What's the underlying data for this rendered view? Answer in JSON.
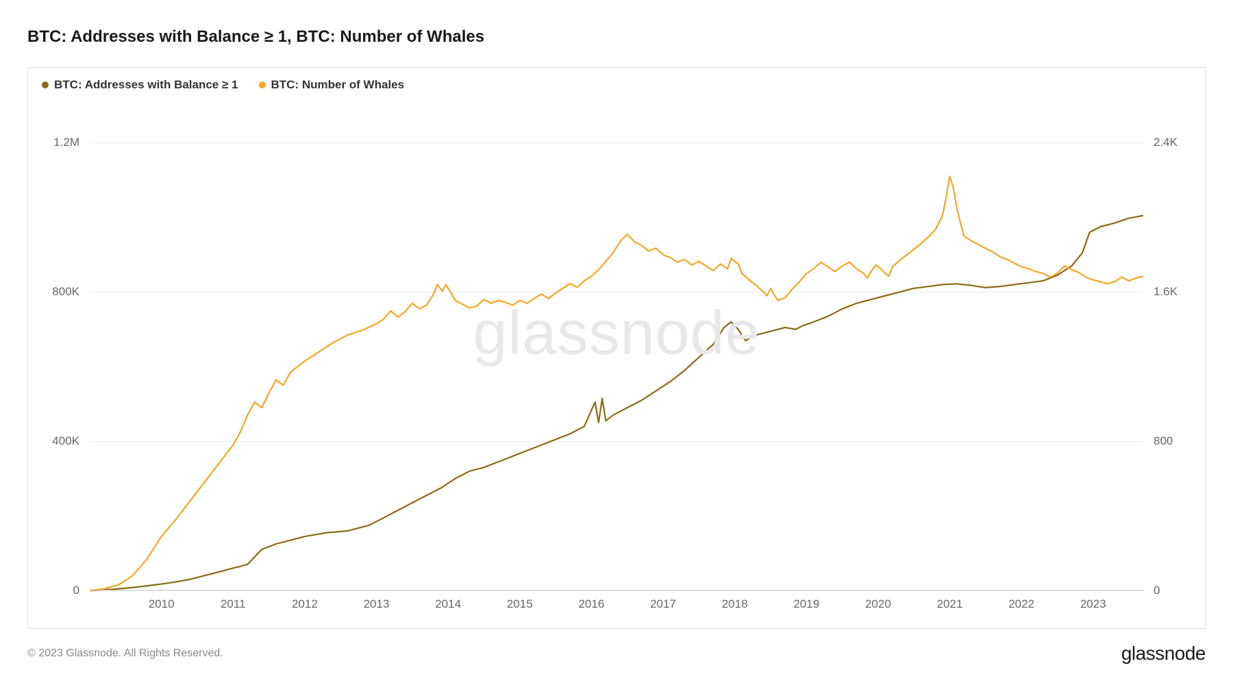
{
  "title": "BTC: Addresses with Balance ≥ 1, BTC: Number of Whales",
  "watermark": "glassnode",
  "copyright": "© 2023 Glassnode. All Rights Reserved.",
  "brand": "glassnode",
  "chart": {
    "type": "line",
    "background_color": "#ffffff",
    "border_color": "#e0e0e0",
    "grid_color": "#eeeeee",
    "text_color": "#666666",
    "title_fontsize": 24,
    "label_fontsize": 17,
    "x": {
      "min": 2009.0,
      "max": 2023.7,
      "ticks": [
        2010,
        2011,
        2012,
        2013,
        2014,
        2015,
        2016,
        2017,
        2018,
        2019,
        2020,
        2021,
        2022,
        2023
      ]
    },
    "y_left": {
      "min": 0,
      "max": 1300000,
      "ticks": [
        {
          "v": 0,
          "label": "0"
        },
        {
          "v": 400000,
          "label": "400K"
        },
        {
          "v": 800000,
          "label": "800K"
        },
        {
          "v": 1200000,
          "label": "1.2M"
        }
      ]
    },
    "y_right": {
      "min": 0,
      "max": 2600,
      "ticks": [
        {
          "v": 0,
          "label": "0"
        },
        {
          "v": 800,
          "label": "800"
        },
        {
          "v": 1600,
          "label": "1.6K"
        },
        {
          "v": 2400,
          "label": "2.4K"
        }
      ]
    },
    "series": [
      {
        "name": "BTC: Addresses with Balance ≥ 1",
        "axis": "left",
        "color": "#8b6914",
        "line_width": 2.2,
        "points": [
          [
            2009.0,
            0
          ],
          [
            2009.3,
            3000
          ],
          [
            2009.6,
            8000
          ],
          [
            2009.9,
            15000
          ],
          [
            2010.1,
            20000
          ],
          [
            2010.4,
            30000
          ],
          [
            2010.7,
            45000
          ],
          [
            2011.0,
            60000
          ],
          [
            2011.2,
            70000
          ],
          [
            2011.4,
            110000
          ],
          [
            2011.6,
            125000
          ],
          [
            2011.8,
            135000
          ],
          [
            2012.0,
            145000
          ],
          [
            2012.3,
            155000
          ],
          [
            2012.6,
            160000
          ],
          [
            2012.9,
            175000
          ],
          [
            2013.1,
            195000
          ],
          [
            2013.3,
            215000
          ],
          [
            2013.5,
            235000
          ],
          [
            2013.7,
            255000
          ],
          [
            2013.9,
            275000
          ],
          [
            2014.1,
            300000
          ],
          [
            2014.3,
            320000
          ],
          [
            2014.5,
            330000
          ],
          [
            2014.7,
            345000
          ],
          [
            2014.9,
            360000
          ],
          [
            2015.1,
            375000
          ],
          [
            2015.3,
            390000
          ],
          [
            2015.5,
            405000
          ],
          [
            2015.7,
            420000
          ],
          [
            2015.9,
            440000
          ],
          [
            2016.05,
            505000
          ],
          [
            2016.1,
            450000
          ],
          [
            2016.15,
            515000
          ],
          [
            2016.2,
            455000
          ],
          [
            2016.3,
            470000
          ],
          [
            2016.5,
            490000
          ],
          [
            2016.7,
            510000
          ],
          [
            2016.9,
            535000
          ],
          [
            2017.1,
            560000
          ],
          [
            2017.3,
            590000
          ],
          [
            2017.5,
            625000
          ],
          [
            2017.7,
            660000
          ],
          [
            2017.85,
            705000
          ],
          [
            2017.95,
            720000
          ],
          [
            2018.05,
            700000
          ],
          [
            2018.15,
            670000
          ],
          [
            2018.3,
            685000
          ],
          [
            2018.5,
            695000
          ],
          [
            2018.7,
            705000
          ],
          [
            2018.85,
            700000
          ],
          [
            2018.95,
            710000
          ],
          [
            2019.1,
            720000
          ],
          [
            2019.3,
            735000
          ],
          [
            2019.5,
            755000
          ],
          [
            2019.7,
            770000
          ],
          [
            2019.9,
            780000
          ],
          [
            2020.1,
            790000
          ],
          [
            2020.3,
            800000
          ],
          [
            2020.5,
            810000
          ],
          [
            2020.7,
            815000
          ],
          [
            2020.9,
            820000
          ],
          [
            2021.1,
            822000
          ],
          [
            2021.3,
            818000
          ],
          [
            2021.5,
            812000
          ],
          [
            2021.7,
            815000
          ],
          [
            2021.9,
            820000
          ],
          [
            2022.1,
            825000
          ],
          [
            2022.3,
            830000
          ],
          [
            2022.5,
            845000
          ],
          [
            2022.7,
            870000
          ],
          [
            2022.85,
            905000
          ],
          [
            2022.95,
            960000
          ],
          [
            2023.1,
            975000
          ],
          [
            2023.3,
            985000
          ],
          [
            2023.5,
            998000
          ],
          [
            2023.7,
            1005000
          ]
        ]
      },
      {
        "name": "BTC: Number of Whales",
        "axis": "right",
        "color": "#f5a623",
        "line_width": 2.2,
        "points": [
          [
            2009.0,
            0
          ],
          [
            2009.2,
            10
          ],
          [
            2009.4,
            30
          ],
          [
            2009.6,
            80
          ],
          [
            2009.8,
            170
          ],
          [
            2010.0,
            290
          ],
          [
            2010.2,
            380
          ],
          [
            2010.4,
            480
          ],
          [
            2010.6,
            580
          ],
          [
            2010.8,
            680
          ],
          [
            2011.0,
            780
          ],
          [
            2011.1,
            850
          ],
          [
            2011.2,
            940
          ],
          [
            2011.3,
            1010
          ],
          [
            2011.4,
            980
          ],
          [
            2011.5,
            1060
          ],
          [
            2011.6,
            1130
          ],
          [
            2011.7,
            1100
          ],
          [
            2011.8,
            1170
          ],
          [
            2012.0,
            1230
          ],
          [
            2012.2,
            1280
          ],
          [
            2012.4,
            1330
          ],
          [
            2012.6,
            1370
          ],
          [
            2012.8,
            1395
          ],
          [
            2013.0,
            1430
          ],
          [
            2013.1,
            1455
          ],
          [
            2013.2,
            1500
          ],
          [
            2013.3,
            1465
          ],
          [
            2013.4,
            1495
          ],
          [
            2013.5,
            1540
          ],
          [
            2013.6,
            1510
          ],
          [
            2013.7,
            1530
          ],
          [
            2013.8,
            1590
          ],
          [
            2013.85,
            1640
          ],
          [
            2013.92,
            1605
          ],
          [
            2013.97,
            1640
          ],
          [
            2014.05,
            1590
          ],
          [
            2014.1,
            1555
          ],
          [
            2014.2,
            1535
          ],
          [
            2014.3,
            1515
          ],
          [
            2014.4,
            1525
          ],
          [
            2014.5,
            1560
          ],
          [
            2014.6,
            1540
          ],
          [
            2014.7,
            1555
          ],
          [
            2014.8,
            1545
          ],
          [
            2014.9,
            1530
          ],
          [
            2015.0,
            1555
          ],
          [
            2015.1,
            1540
          ],
          [
            2015.2,
            1565
          ],
          [
            2015.3,
            1590
          ],
          [
            2015.4,
            1565
          ],
          [
            2015.5,
            1595
          ],
          [
            2015.6,
            1620
          ],
          [
            2015.7,
            1645
          ],
          [
            2015.8,
            1625
          ],
          [
            2015.9,
            1660
          ],
          [
            2016.0,
            1685
          ],
          [
            2016.1,
            1720
          ],
          [
            2016.2,
            1765
          ],
          [
            2016.3,
            1810
          ],
          [
            2016.4,
            1870
          ],
          [
            2016.5,
            1910
          ],
          [
            2016.55,
            1890
          ],
          [
            2016.6,
            1870
          ],
          [
            2016.7,
            1850
          ],
          [
            2016.8,
            1820
          ],
          [
            2016.9,
            1835
          ],
          [
            2017.0,
            1800
          ],
          [
            2017.1,
            1785
          ],
          [
            2017.2,
            1760
          ],
          [
            2017.3,
            1775
          ],
          [
            2017.4,
            1745
          ],
          [
            2017.5,
            1765
          ],
          [
            2017.6,
            1740
          ],
          [
            2017.7,
            1715
          ],
          [
            2017.8,
            1750
          ],
          [
            2017.9,
            1725
          ],
          [
            2017.95,
            1780
          ],
          [
            2018.05,
            1750
          ],
          [
            2018.1,
            1700
          ],
          [
            2018.2,
            1665
          ],
          [
            2018.3,
            1635
          ],
          [
            2018.4,
            1600
          ],
          [
            2018.45,
            1580
          ],
          [
            2018.5,
            1620
          ],
          [
            2018.55,
            1585
          ],
          [
            2018.6,
            1555
          ],
          [
            2018.7,
            1570
          ],
          [
            2018.8,
            1615
          ],
          [
            2018.9,
            1655
          ],
          [
            2019.0,
            1700
          ],
          [
            2019.1,
            1725
          ],
          [
            2019.2,
            1760
          ],
          [
            2019.3,
            1735
          ],
          [
            2019.4,
            1710
          ],
          [
            2019.5,
            1740
          ],
          [
            2019.6,
            1760
          ],
          [
            2019.7,
            1725
          ],
          [
            2019.8,
            1700
          ],
          [
            2019.85,
            1675
          ],
          [
            2019.9,
            1710
          ],
          [
            2019.97,
            1745
          ],
          [
            2020.05,
            1720
          ],
          [
            2020.1,
            1700
          ],
          [
            2020.15,
            1685
          ],
          [
            2020.2,
            1735
          ],
          [
            2020.3,
            1770
          ],
          [
            2020.4,
            1800
          ],
          [
            2020.5,
            1830
          ],
          [
            2020.6,
            1860
          ],
          [
            2020.7,
            1895
          ],
          [
            2020.8,
            1935
          ],
          [
            2020.9,
            2010
          ],
          [
            2020.95,
            2110
          ],
          [
            2021.0,
            2220
          ],
          [
            2021.05,
            2160
          ],
          [
            2021.1,
            2050
          ],
          [
            2021.15,
            1970
          ],
          [
            2021.2,
            1900
          ],
          [
            2021.3,
            1875
          ],
          [
            2021.4,
            1855
          ],
          [
            2021.5,
            1835
          ],
          [
            2021.6,
            1815
          ],
          [
            2021.7,
            1790
          ],
          [
            2021.8,
            1775
          ],
          [
            2021.9,
            1755
          ],
          [
            2022.0,
            1735
          ],
          [
            2022.1,
            1725
          ],
          [
            2022.2,
            1710
          ],
          [
            2022.3,
            1700
          ],
          [
            2022.4,
            1680
          ],
          [
            2022.5,
            1700
          ],
          [
            2022.6,
            1740
          ],
          [
            2022.7,
            1720
          ],
          [
            2022.8,
            1705
          ],
          [
            2022.9,
            1680
          ],
          [
            2023.0,
            1665
          ],
          [
            2023.1,
            1655
          ],
          [
            2023.2,
            1645
          ],
          [
            2023.3,
            1655
          ],
          [
            2023.4,
            1680
          ],
          [
            2023.5,
            1660
          ],
          [
            2023.6,
            1675
          ],
          [
            2023.7,
            1685
          ]
        ]
      }
    ]
  }
}
